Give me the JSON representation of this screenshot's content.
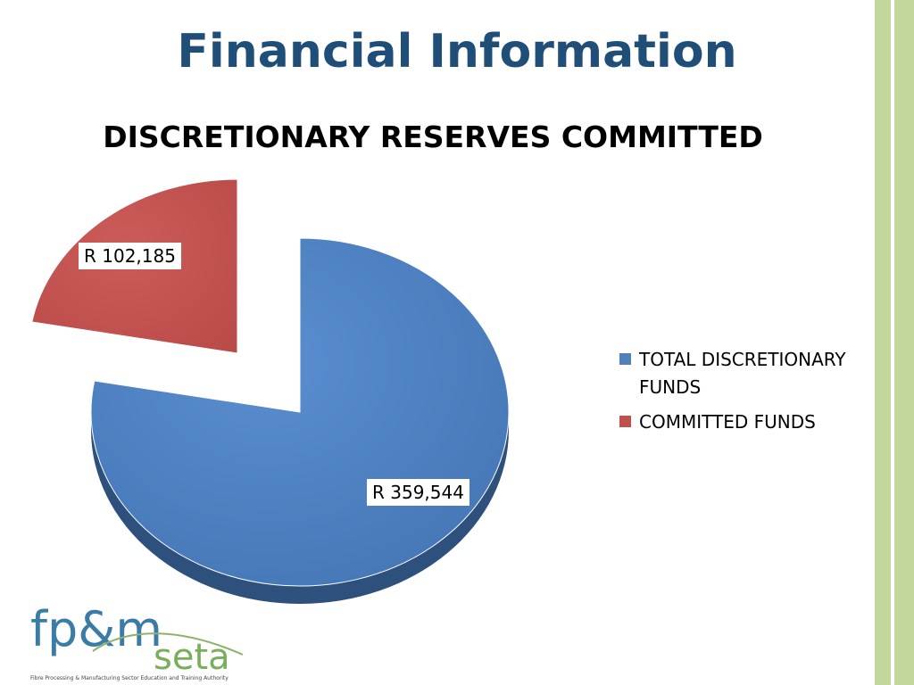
{
  "slide": {
    "title": "Financial Information"
  },
  "chart_data": {
    "type": "pie",
    "title": "DISCRETIONARY RESERVES COMMITTED",
    "categories": [
      "TOTAL DISCRETIONARY FUNDS",
      "COMMITTED FUNDS"
    ],
    "values": [
      359544,
      102185
    ],
    "data_labels": [
      "R 359,544",
      "R 102,185"
    ],
    "colors": [
      "#4F81BD",
      "#C0504D"
    ],
    "exploded": [
      false,
      true
    ],
    "legend_position": "right",
    "style": "3d"
  },
  "legend": {
    "items": [
      {
        "label": "TOTAL DISCRETIONARY FUNDS",
        "color": "#4F81BD"
      },
      {
        "label": "COMMITTED FUNDS",
        "color": "#C0504D"
      }
    ]
  },
  "decor": {
    "stripe_colors": [
      "#ffffff",
      "#C3D69B",
      "#ffffff",
      "#C3D69B"
    ]
  },
  "logo": {
    "mark": "fp&m",
    "name": "seta",
    "tagline": "Fibre Processing & Manufacturing Sector Education and Training Authority"
  }
}
